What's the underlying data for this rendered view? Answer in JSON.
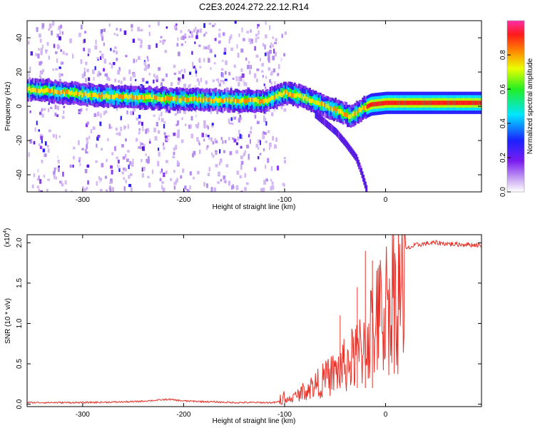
{
  "title": "C2E3.2024.272.22.12.R14",
  "chart_data": [
    {
      "type": "heatmap",
      "name": "spectrogram",
      "xlabel": "Height of straight line (km)",
      "ylabel": "Frequency (Hz)",
      "xlim": [
        -355,
        95
      ],
      "ylim": [
        -50,
        50
      ],
      "xticks": [
        -300,
        -200,
        -100,
        0
      ],
      "yticks": [
        -40,
        -20,
        0,
        20,
        40
      ],
      "ridge": {
        "x": [
          -355,
          -320,
          -280,
          -240,
          -200,
          -160,
          -120,
          -100,
          -80,
          -60,
          -45,
          -35,
          -25,
          -15,
          0,
          40,
          95
        ],
        "y": [
          10,
          8,
          6,
          5,
          4,
          3.5,
          3,
          8,
          5,
          0,
          -3,
          -6,
          -2,
          1,
          2,
          2,
          2
        ]
      },
      "branch": {
        "x": [
          -70,
          -60,
          -50,
          -40,
          -30,
          -25,
          -20
        ],
        "y": [
          -5,
          -10,
          -15,
          -22,
          -30,
          -38,
          -48
        ]
      }
    },
    {
      "type": "colorbar",
      "name": "colorscale",
      "label": "Normalized spectral amplitude",
      "lim": [
        0,
        1
      ],
      "ticks": [
        "0.0",
        "0.2",
        "0.4",
        "0.6",
        "0.8"
      ]
    },
    {
      "type": "line",
      "name": "snr",
      "xlabel": "Height of straight line (km)",
      "ylabel": "SNR (10 * v/v)",
      "yexponent": "(x10",
      "yexponent_power": "4",
      "yexponent_close": ")",
      "xlim": [
        -355,
        95
      ],
      "ylim": [
        -0.03,
        2.1
      ],
      "xticks": [
        -300,
        -200,
        -100,
        0
      ],
      "yticks": [
        0.0,
        0.5,
        1.0,
        1.5,
        2.0
      ],
      "ytick_labels": [
        "0.0",
        "0.5",
        "1.0",
        "1.5",
        "2.0"
      ],
      "color": "#e8332a",
      "series": {
        "x": [
          -355,
          -300,
          -250,
          -225,
          -215,
          -200,
          -150,
          -110,
          -100,
          -90,
          -80,
          -70,
          -60,
          -50,
          -40,
          -30,
          -25,
          -20,
          -15,
          -10,
          -5,
          0,
          10,
          20,
          30,
          40,
          50,
          60,
          70,
          80,
          95
        ],
        "y": [
          0.02,
          0.02,
          0.03,
          0.05,
          0.06,
          0.04,
          0.02,
          0.02,
          0.05,
          0.12,
          0.22,
          0.3,
          0.4,
          0.5,
          0.62,
          0.75,
          0.85,
          1.0,
          1.15,
          1.3,
          1.4,
          1.55,
          1.8,
          1.92,
          1.97,
          1.99,
          2.0,
          1.99,
          1.98,
          1.98,
          1.97
        ]
      },
      "spikes": [
        {
          "x": -20,
          "y": 1.9
        },
        {
          "x": -13,
          "y": 1.78
        },
        {
          "x": -28,
          "y": 1.45
        },
        {
          "x": -45,
          "y": 1.1
        }
      ]
    }
  ]
}
